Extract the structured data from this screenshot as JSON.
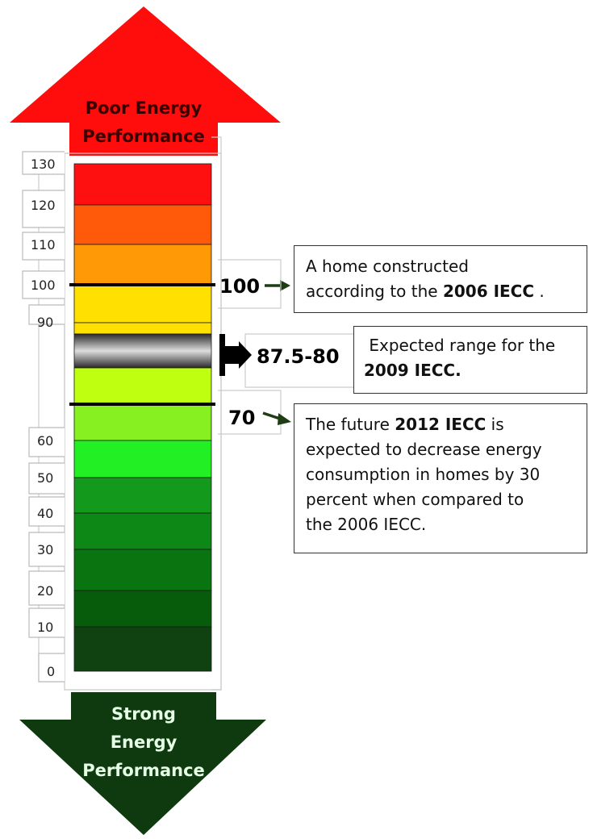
{
  "top_arrow": {
    "line1": "Poor Energy",
    "line2": "Performance",
    "color": "#ff0d0d"
  },
  "bottom_arrow": {
    "line1": "Strong",
    "line2": "Energy",
    "line3": "Performance",
    "color": "#0f3a0f"
  },
  "scale_labels": [
    "130",
    "120",
    "110",
    "100",
    "90",
    "60",
    "50",
    "40",
    "30",
    "20",
    "10",
    "0"
  ],
  "bands": [
    {
      "from": 120,
      "to": 130,
      "color": "#ff1010"
    },
    {
      "from": 110,
      "to": 120,
      "color": "#ff5a0a"
    },
    {
      "from": 100,
      "to": 110,
      "color": "#ff9a06"
    },
    {
      "from": 90,
      "to": 100,
      "color": "#ffe000"
    },
    {
      "from": 87.5,
      "to": 90,
      "color": "#ffe000"
    },
    {
      "from": 80,
      "to": 87.5,
      "color": "#777777",
      "style": "gradient"
    },
    {
      "from": 70,
      "to": 80,
      "color": "#bfff10"
    },
    {
      "from": 60,
      "to": 70,
      "color": "#86f020"
    },
    {
      "from": 50,
      "to": 60,
      "color": "#22f025"
    },
    {
      "from": 40,
      "to": 50,
      "color": "#139a1c"
    },
    {
      "from": 30,
      "to": 40,
      "color": "#0d8716"
    },
    {
      "from": 20,
      "to": 30,
      "color": "#0a7411"
    },
    {
      "from": 10,
      "to": 20,
      "color": "#075c0c"
    },
    {
      "from": 0,
      "to": 10,
      "color": "#104110"
    }
  ],
  "markers": {
    "m100": {
      "value": 100,
      "label": "100"
    },
    "m_range": {
      "value_from": 87.5,
      "value_to": 80,
      "label": "87.5-80"
    },
    "m70": {
      "value": 70,
      "label": "70"
    }
  },
  "callouts": {
    "ieCC2006": {
      "line1": "A home constructed",
      "line2_pre": "according to the ",
      "line2_bold": "2006 IECC",
      "line2_post": " ."
    },
    "ieCC2009": {
      "line1": " Expected range for the",
      "line2_bold": "2009 IECC."
    },
    "ieCC2012": {
      "line1_pre": "The future ",
      "line1_bold": "2012 IECC",
      "line1_post": " is",
      "line2": "expected to decrease energy",
      "line3": "consumption in homes by 30",
      "line4": "percent when compared to",
      "line5": "the 2006 IECC."
    }
  },
  "pointer_color": "#1f3d14"
}
